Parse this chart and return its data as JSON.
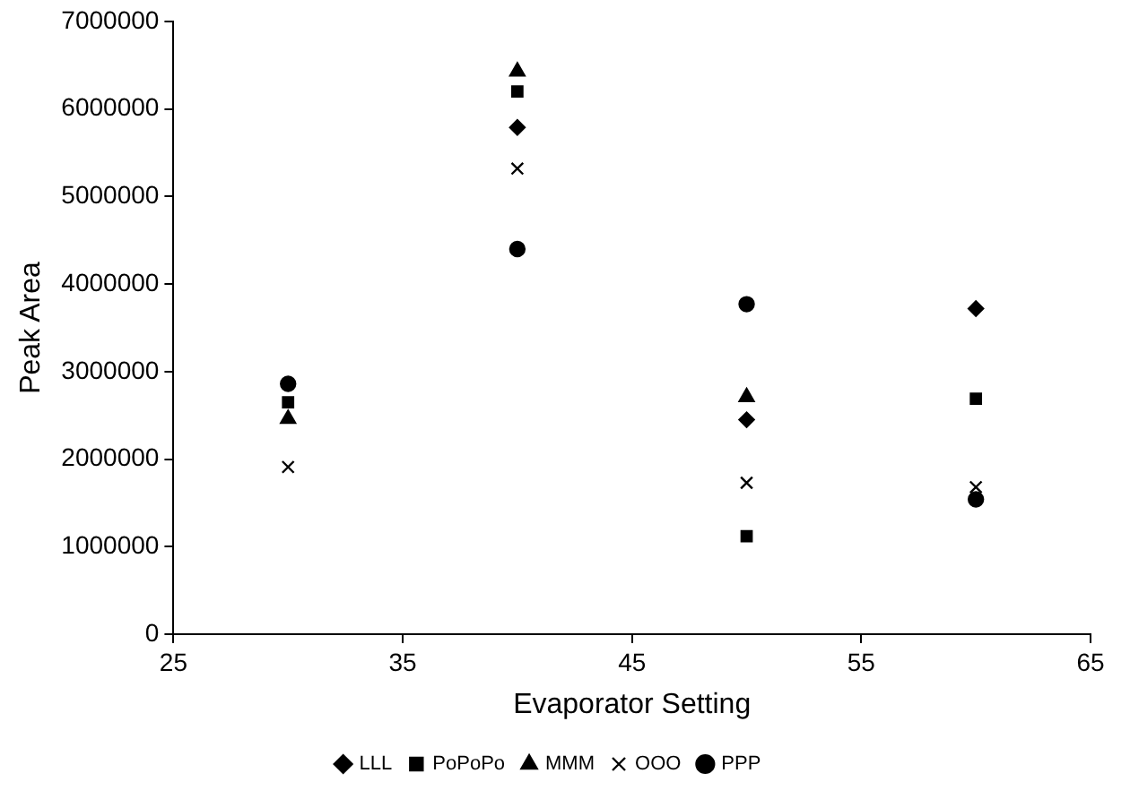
{
  "chart_data": {
    "type": "scatter",
    "xlabel": "Evaporator Setting",
    "ylabel": "Peak Area",
    "x": [
      30,
      40,
      50,
      60
    ],
    "series": [
      {
        "name": "LLL",
        "color": "#000000",
        "marker": "diamond",
        "values": [
          null,
          5790000,
          2450000,
          3720000
        ]
      },
      {
        "name": "PoPoPo",
        "color": "#000000",
        "marker": "square",
        "values": [
          2650000,
          6200000,
          1120000,
          2690000
        ]
      },
      {
        "name": "MMM",
        "color": "#000000",
        "marker": "triangle",
        "values": [
          2460000,
          6430000,
          2710000,
          null
        ]
      },
      {
        "name": "OOO",
        "color": "#000000",
        "marker": "cross",
        "values": [
          1910000,
          5320000,
          1730000,
          1680000
        ]
      },
      {
        "name": "PPP",
        "color": "#000000",
        "marker": "circle",
        "values": [
          2860000,
          4400000,
          3770000,
          1540000
        ]
      }
    ],
    "xlim": [
      25,
      65
    ],
    "xticks": [
      25,
      35,
      45,
      55,
      65
    ],
    "ylim": [
      0,
      7000000
    ],
    "yticks": [
      0,
      1000000,
      2000000,
      3000000,
      4000000,
      5000000,
      6000000,
      7000000
    ],
    "grid": false,
    "legend": "bottom"
  }
}
